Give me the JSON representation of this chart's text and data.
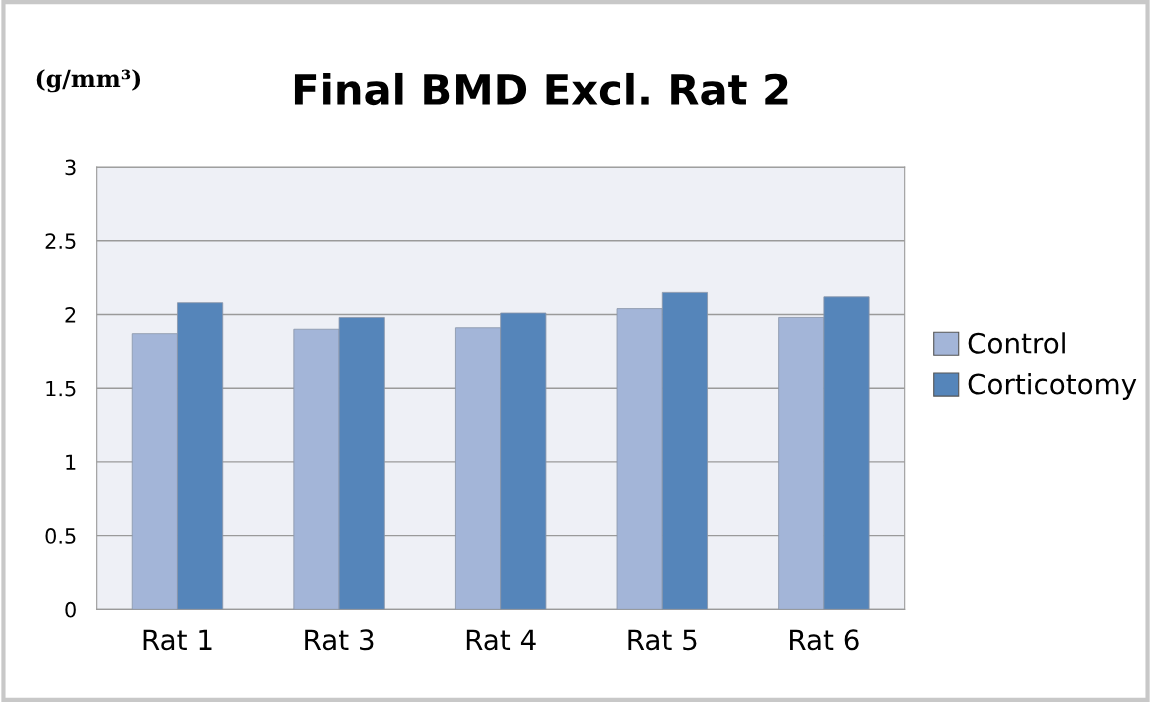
{
  "chart_data": {
    "type": "bar",
    "title": "Final BMD Excl. Rat 2",
    "ylabel": "(g/mm³)",
    "categories": [
      "Rat 1",
      "Rat 3",
      "Rat 4",
      "Rat 5",
      "Rat 6"
    ],
    "series": [
      {
        "name": "Control",
        "color": "#a3b5d8",
        "values": [
          1.87,
          1.9,
          1.91,
          2.04,
          1.98
        ]
      },
      {
        "name": "Corticotomy",
        "color": "#5585ba",
        "values": [
          2.08,
          1.98,
          2.01,
          2.15,
          2.12
        ]
      }
    ],
    "ylim": [
      0,
      3
    ],
    "yticks": [
      0,
      0.5,
      1,
      1.5,
      2,
      2.5,
      3
    ],
    "grid": "y",
    "legend": "right"
  }
}
